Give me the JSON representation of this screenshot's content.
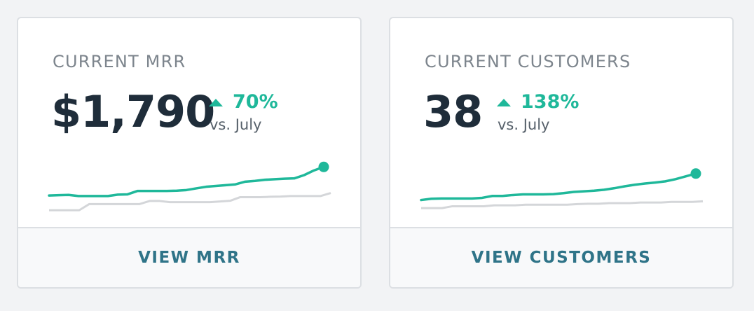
{
  "colors": {
    "accent": "#1fb89a",
    "baseline": "#d4d6d9",
    "link": "#2f7488",
    "value": "#1f2d3a",
    "muted": "#7d858d"
  },
  "cards": [
    {
      "id": "mrr",
      "title": "CURRENT MRR",
      "value": "$1,790",
      "change_percent": "70%",
      "change_direction": "up",
      "comparison": "vs. July",
      "link_label": "VIEW MRR",
      "trend_icon": "up-triangle-icon"
    },
    {
      "id": "customers",
      "title": "CURRENT CUSTOMERS",
      "value": "38",
      "change_percent": "138%",
      "change_direction": "up",
      "comparison": "vs. July",
      "link_label": "VIEW CUSTOMERS",
      "trend_icon": "up-triangle-icon"
    }
  ],
  "chart_data": [
    {
      "type": "line",
      "title": "",
      "series": [
        {
          "values": [
            1052,
            1055,
            1058,
            1046,
            1046,
            1046,
            1046,
            1061,
            1064,
            1100,
            1100,
            1100,
            1100,
            1103,
            1110,
            1128,
            1145,
            1154,
            1162,
            1171,
            1200,
            1208,
            1220,
            1226,
            1232,
            1235,
            1270,
            1320,
            1358
          ]
        },
        {
          "values": [
            894,
            894,
            894,
            894,
            960,
            960,
            960,
            960,
            960,
            960,
            993,
            993,
            980,
            980,
            980,
            980,
            980,
            988,
            995,
            1034,
            1034,
            1034,
            1038,
            1040,
            1046,
            1046,
            1046,
            1046,
            1078
          ]
        }
      ],
      "ylim": [
        850,
        1450
      ],
      "grid": false,
      "legend": "none"
    },
    {
      "type": "line",
      "title": "",
      "series": [
        {
          "values": [
            18.6,
            19.0,
            19.1,
            19.1,
            19.1,
            19.1,
            19.3,
            19.9,
            19.9,
            20.2,
            20.4,
            20.4,
            20.4,
            20.5,
            20.8,
            21.2,
            21.4,
            21.6,
            21.9,
            22.4,
            23.0,
            23.5,
            23.9,
            24.2,
            24.6,
            25.3,
            26.2,
            27.1
          ]
        },
        {
          "values": [
            16.0,
            16.0,
            16.0,
            16.6,
            16.6,
            16.6,
            16.6,
            16.9,
            16.9,
            16.9,
            17.1,
            17.1,
            17.1,
            17.1,
            17.1,
            17.3,
            17.4,
            17.4,
            17.6,
            17.6,
            17.6,
            17.8,
            17.8,
            17.8,
            18.0,
            18.0,
            18.0,
            18.2
          ]
        }
      ],
      "ylim": [
        14,
        32
      ],
      "grid": false,
      "legend": "none"
    }
  ]
}
